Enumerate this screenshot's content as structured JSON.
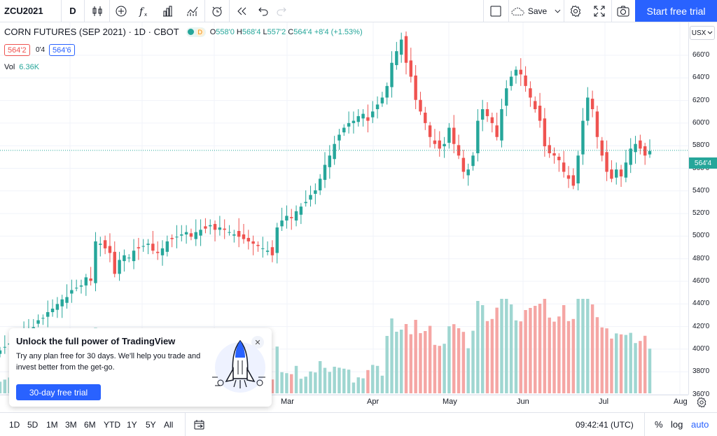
{
  "toolbar": {
    "symbol": "ZCU2021",
    "interval": "D",
    "save_label": "Save",
    "start_trial_label": "Start free trial"
  },
  "legend": {
    "title": "CORN FUTURES (SEP 2021) · 1D · CBOT",
    "market_status_letter": "D",
    "open_label": "O",
    "open": "558'0",
    "high_label": "H",
    "high": "568'4",
    "low_label": "L",
    "low": "557'2",
    "close_label": "C",
    "close": "564'4",
    "change": "+8'4 (+1.53%)",
    "bid": "564'2",
    "spread": "0'4",
    "ask": "564'6",
    "volume_label": "Vol",
    "volume": "6.36K"
  },
  "price_axis": {
    "currency": "USX",
    "ticks": [
      "660'0",
      "640'0",
      "620'0",
      "600'0",
      "580'0",
      "560'0",
      "540'0",
      "520'0",
      "500'0",
      "480'0",
      "460'0",
      "440'0",
      "420'0",
      "400'0",
      "380'0",
      "360'0"
    ],
    "current_price": "564'4"
  },
  "time_axis": {
    "months": [
      "Mar",
      "Apr",
      "May",
      "Jun",
      "Jul",
      "Aug"
    ]
  },
  "bottom_bar": {
    "ranges": [
      "1D",
      "5D",
      "1M",
      "3M",
      "6M",
      "YTD",
      "1Y",
      "5Y",
      "All"
    ],
    "time": "09:42:41 (UTC)",
    "percent": "%",
    "log": "log",
    "auto": "auto"
  },
  "promo": {
    "heading": "Unlock the full power of TradingView",
    "body": "Try any plan free for 30 days. We'll help you trade and invest better from the get-go.",
    "button": "30-day free trial"
  },
  "colors": {
    "up": "#26a69a",
    "down": "#ef5350",
    "accent": "#2962ff",
    "up_volume": "#9fd6d1",
    "down_volume": "#f5a6a4"
  },
  "chart_data": {
    "type": "candlestick",
    "instrument": "CORN FUTURES (SEP 2021)",
    "y_unit": "USX",
    "ylim": [
      355,
      670
    ],
    "x_months": [
      "Mar",
      "Apr",
      "May",
      "Jun",
      "Jul",
      "Aug"
    ],
    "last_close": 564.5,
    "series_approx_closes": [
      392,
      395,
      398,
      400,
      403,
      406,
      410,
      412,
      418,
      420,
      425,
      428,
      432,
      436,
      438,
      444,
      446,
      448,
      455,
      452,
      486,
      484,
      480,
      476,
      458,
      470,
      474,
      472,
      478,
      480,
      482,
      484,
      478,
      476,
      480,
      486,
      488,
      490,
      492,
      494,
      490,
      494,
      496,
      497,
      500,
      496,
      498,
      496,
      494,
      492,
      490,
      488,
      486,
      484,
      482,
      480,
      478,
      474,
      498,
      504,
      508,
      506,
      512,
      516,
      520,
      526,
      530,
      540,
      552,
      560,
      570,
      578,
      584,
      588,
      590,
      594,
      596,
      590,
      598,
      604,
      610,
      620,
      640,
      650,
      660,
      640,
      628,
      608,
      598,
      588,
      576,
      570,
      566,
      570,
      584,
      570,
      560,
      546,
      548,
      560,
      590,
      600,
      594,
      588,
      576,
      600,
      618,
      628,
      634,
      630,
      620,
      610,
      600,
      590,
      568,
      562,
      560,
      556,
      546,
      540,
      534,
      560,
      590,
      610,
      600,
      576,
      560,
      546,
      540,
      548,
      542,
      554,
      566,
      570,
      566,
      560,
      564
    ]
  }
}
